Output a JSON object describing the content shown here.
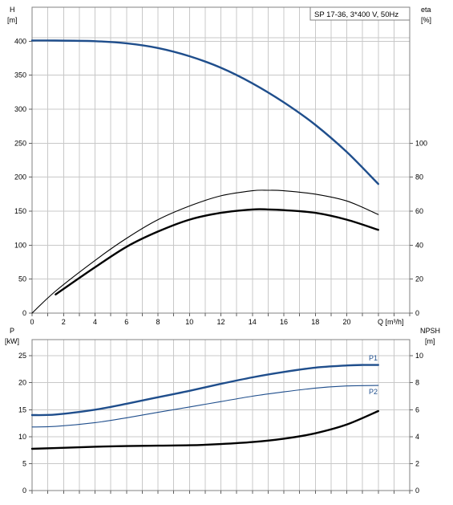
{
  "chart_data": [
    {
      "type": "line",
      "title": "SP 17-36, 3*400 V, 50Hz",
      "xlabel": "Q [m³/h]",
      "x_ticks": [
        0,
        2,
        4,
        6,
        8,
        10,
        12,
        14,
        16,
        18,
        20
      ],
      "xlim": [
        0,
        24
      ],
      "ylabel_left": [
        "H",
        "[m]"
      ],
      "ylim_left": [
        0,
        450
      ],
      "y_ticks_left": [
        0,
        50,
        100,
        150,
        200,
        250,
        300,
        350,
        400
      ],
      "ylabel_right": [
        "eta",
        "[%]"
      ],
      "ylim_right": [
        0,
        180
      ],
      "y_ticks_right": [
        0,
        20,
        40,
        60,
        80,
        100
      ],
      "grid": true,
      "series": [
        {
          "axis": "left",
          "color": "#1f4e8c",
          "style": "thick",
          "x": [
            0,
            1.5,
            4,
            6,
            8,
            10,
            12,
            14,
            16,
            18,
            20,
            22
          ],
          "y": [
            401,
            401,
            400,
            397,
            390,
            378,
            361,
            338,
            310,
            277,
            237,
            190
          ]
        },
        {
          "axis": "right",
          "color": "#000000",
          "style": "thin",
          "x": [
            0,
            1.5,
            4,
            6,
            8,
            10,
            12,
            14,
            15,
            16,
            18,
            20,
            22
          ],
          "y": [
            0,
            13,
            31,
            44,
            55,
            63,
            69,
            72,
            72.3,
            72,
            70,
            66,
            58
          ]
        },
        {
          "axis": "right",
          "color": "#000000",
          "style": "thick",
          "x": [
            1.5,
            4,
            6,
            8,
            10,
            12,
            14,
            15,
            16,
            18,
            20,
            22
          ],
          "y": [
            11,
            27,
            39,
            48,
            55,
            59,
            61,
            61,
            60.6,
            59,
            55,
            49
          ]
        }
      ]
    },
    {
      "type": "line",
      "xlim": [
        0,
        24
      ],
      "x_ticks": [
        0,
        2,
        4,
        6,
        8,
        10,
        12,
        14,
        16,
        18,
        20
      ],
      "ylabel_left": [
        "P",
        "[kW]"
      ],
      "ylim_left": [
        0,
        28
      ],
      "y_ticks_left": [
        0,
        5,
        10,
        15,
        20,
        25
      ],
      "ylabel_right": [
        "NPSH",
        "[m]"
      ],
      "ylim_right": [
        0,
        11.2
      ],
      "y_ticks_right": [
        0,
        2,
        4,
        6,
        8,
        10
      ],
      "grid": true,
      "series": [
        {
          "name": "P1",
          "axis": "left",
          "color": "#1f4e8c",
          "style": "thick",
          "x": [
            0,
            1.5,
            4,
            6,
            8,
            10,
            12,
            14,
            16,
            18,
            20,
            21,
            22
          ],
          "y": [
            14,
            14.1,
            15,
            16.1,
            17.3,
            18.5,
            19.8,
            21,
            22,
            22.8,
            23.2,
            23.3,
            23.3
          ]
        },
        {
          "name": "P2",
          "axis": "left",
          "color": "#1f4e8c",
          "style": "thin",
          "x": [
            0,
            1.5,
            4,
            6,
            8,
            10,
            12,
            14,
            16,
            18,
            20,
            22
          ],
          "y": [
            11.8,
            11.9,
            12.6,
            13.5,
            14.5,
            15.5,
            16.5,
            17.5,
            18.3,
            19.0,
            19.4,
            19.5
          ]
        },
        {
          "axis": "right",
          "color": "#000000",
          "style": "thick",
          "x": [
            0,
            1.5,
            4,
            6,
            8,
            10,
            12,
            14,
            16,
            18,
            20,
            22
          ],
          "y": [
            3.1,
            3.15,
            3.25,
            3.3,
            3.33,
            3.36,
            3.45,
            3.6,
            3.85,
            4.25,
            4.9,
            5.9
          ]
        }
      ]
    }
  ]
}
